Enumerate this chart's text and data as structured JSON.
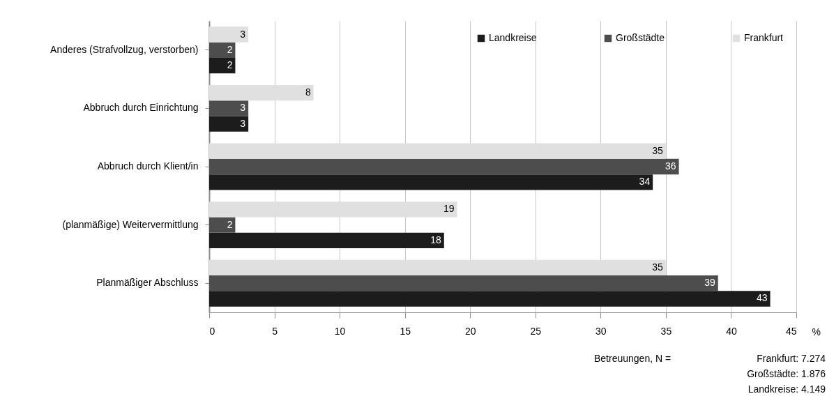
{
  "chart_data": {
    "type": "bar",
    "orientation": "horizontal",
    "categories": [
      "Anderes (Strafvollzug, verstorben)",
      "Abbruch durch Einrichtung",
      "Abbruch durch Klient/in",
      "(planmäßige) Weitervermittlung",
      "Planmäßiger Abschluss"
    ],
    "series": [
      {
        "name": "Landkreise",
        "color": "#1c1c1c",
        "values": [
          2,
          3,
          34,
          18,
          43
        ]
      },
      {
        "name": "Großstädte",
        "color": "#4d4d4d",
        "values": [
          2,
          3,
          36,
          2,
          39
        ]
      },
      {
        "name": "Frankfurt",
        "color": "#e0e0e0",
        "values": [
          3,
          8,
          35,
          19,
          35
        ]
      }
    ],
    "xlabel": "%",
    "xlim": [
      0,
      45
    ],
    "xticks": [
      0,
      5,
      10,
      15,
      20,
      25,
      30,
      35,
      40,
      45
    ],
    "grid": "x",
    "legend": "top right",
    "data_labels": true,
    "annotations": [
      "Betreuungen, N =",
      "Frankfurt: 7.274",
      "Großstädte: 1.876",
      "Landkreise: 4.149"
    ]
  }
}
